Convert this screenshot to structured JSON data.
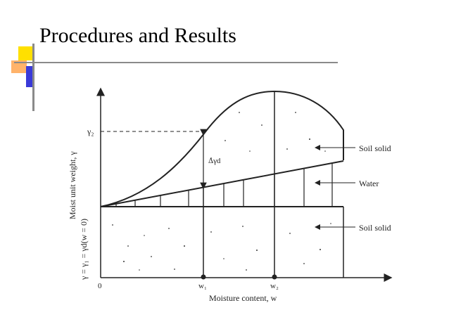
{
  "slide": {
    "title": "Procedures and Results"
  },
  "diagram": {
    "y_axis_label": "Moist unit weight, γ",
    "y_axis_sublabel": "γ = γ₁ = γd(w = 0)",
    "x_axis_label": "Moisture content, w",
    "origin_label": "0",
    "w1_label": "w₁",
    "w2_label": "w₂",
    "gamma2_label": "γ₂",
    "delta_label": "Δγd",
    "legend": {
      "soil_solid_top": "Soil solid",
      "water": "Water",
      "soil_solid_bottom": "Soil solid"
    }
  },
  "colors": {
    "ink": "#222222",
    "deco_yellow": "#ffe000",
    "deco_orange": "#ffb36a",
    "deco_blue": "#3a3ad8",
    "deco_gray": "#8a8a8a"
  }
}
